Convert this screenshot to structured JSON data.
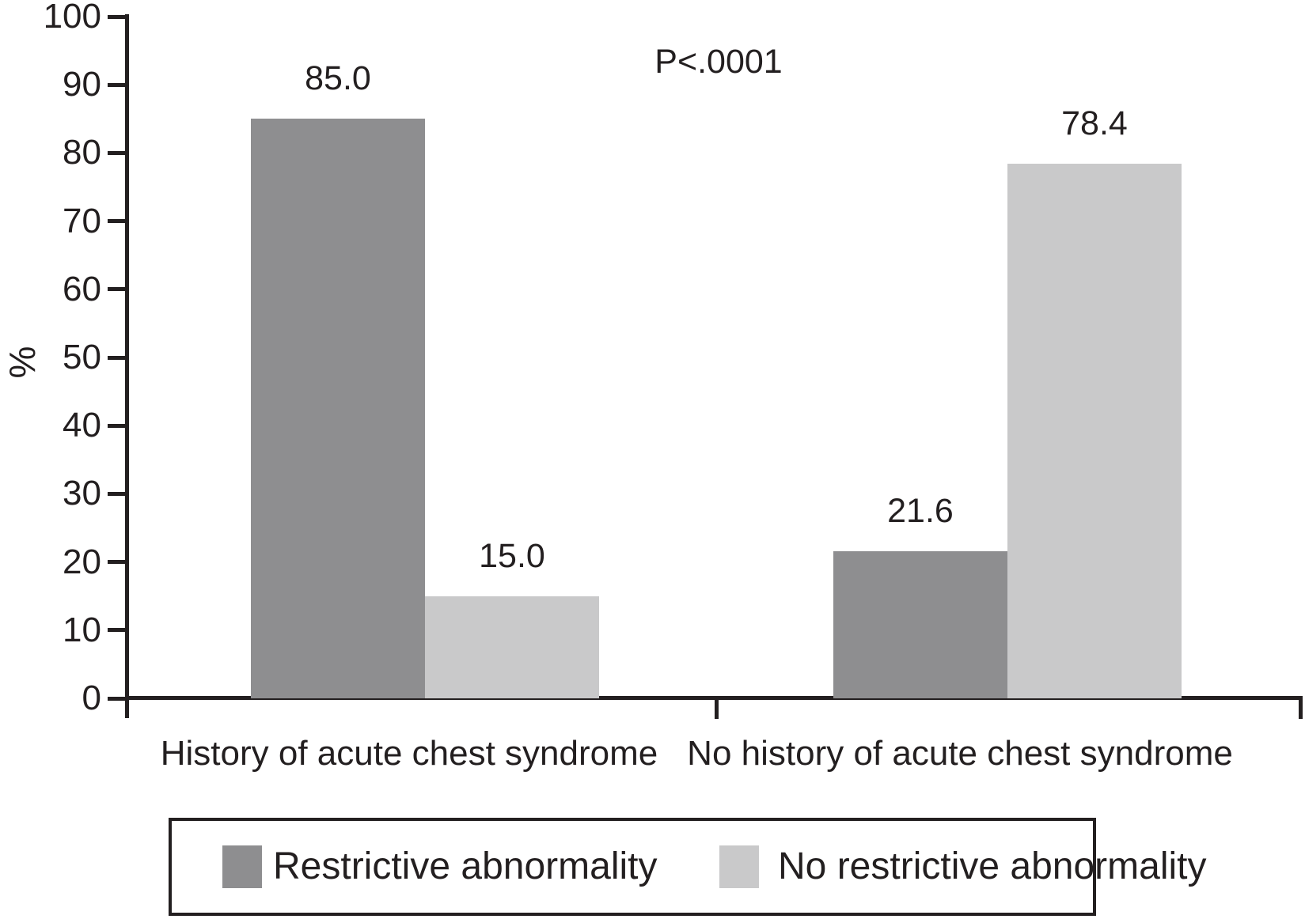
{
  "chart_data": {
    "type": "bar",
    "title": "",
    "ylabel": "%",
    "xlabel": "",
    "ylim": [
      0,
      100
    ],
    "yticks": [
      0,
      10,
      20,
      30,
      40,
      50,
      60,
      70,
      80,
      90,
      100
    ],
    "grid": false,
    "legend_position": "bottom",
    "annotation": "P<.0001",
    "categories": [
      "History of acute chest syndrome",
      "No history of acute chest syndrome"
    ],
    "series": [
      {
        "name": "Restrictive abnormality",
        "color": "#8e8e90",
        "values": [
          85.0,
          21.6
        ],
        "labels": [
          "85.0",
          "21.6"
        ]
      },
      {
        "name": "No restrictive abnormality",
        "color": "#c9c9ca",
        "values": [
          15.0,
          78.4
        ],
        "labels": [
          "15.0",
          "78.4"
        ]
      }
    ]
  },
  "colors": {
    "axis": "#231f20",
    "text": "#231f20",
    "background": "#ffffff"
  }
}
